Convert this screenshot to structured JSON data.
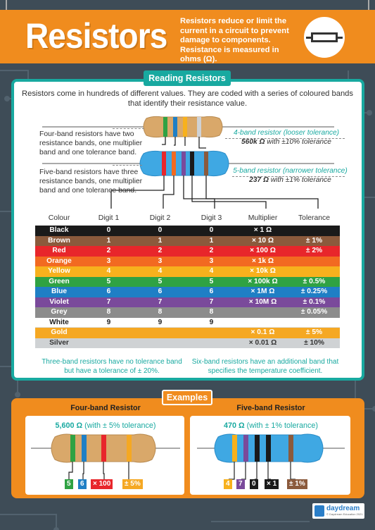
{
  "header": {
    "title": "Resistors",
    "description": "Resistors reduce or limit the current in a circuit to prevent damage to components. Resistance is measured in ohms (Ω)."
  },
  "reading": {
    "title": "Reading Resistors",
    "intro": "Resistors come in hundreds of different values. They are coded with a series of coloured bands that identify their resistance value.",
    "four_band_note": "Four-band resistors have two resistance bands, one multiplier band and one tolerance band.",
    "five_band_note": "Five-band resistors have three resistance bands, one multiplier band and one tolerance band.",
    "four_band_callout_title": "4-band resistor (looser tolerance)",
    "four_band_callout_value": "560k Ω",
    "four_band_callout_rest": " with ±10% tolerance",
    "five_band_callout_title": "5-band resistor (narrower tolerance)",
    "five_band_callout_value": "237 Ω",
    "five_band_callout_rest": " with ±1% tolerance",
    "three_band_foot": "Three-band resistors have no tolerance band but have a tolerance of ± 20%.",
    "six_band_foot": "Six-band resistors have an additional band that specifies the temperature coefficient."
  },
  "table": {
    "headers": [
      "Colour",
      "Digit 1",
      "Digit 2",
      "Digit 3",
      "Multiplier",
      "Tolerance"
    ],
    "rows": [
      {
        "colour": "Black",
        "d1": "0",
        "d2": "0",
        "d3": "0",
        "mult": "× 1 Ω",
        "tol": "",
        "bg": "#1a1a1a",
        "fg": "#ffffff",
        "multbg": "#1a1a1a",
        "tolbg": "#1a1a1a"
      },
      {
        "colour": "Brown",
        "d1": "1",
        "d2": "1",
        "d3": "1",
        "mult": "× 10 Ω",
        "tol": "± 1%",
        "bg": "#8b5a3c",
        "fg": "#ffffff",
        "multbg": "#8b5a3c",
        "tolbg": "#8b5a3c"
      },
      {
        "colour": "Red",
        "d1": "2",
        "d2": "2",
        "d3": "2",
        "mult": "× 100 Ω",
        "tol": "± 2%",
        "bg": "#e8262b",
        "fg": "#ffffff",
        "multbg": "#e8262b",
        "tolbg": "#e8262b"
      },
      {
        "colour": "Orange",
        "d1": "3",
        "d2": "3",
        "d3": "3",
        "mult": "× 1k Ω",
        "tol": "",
        "bg": "#f26a21",
        "fg": "#ffffff",
        "multbg": "#f26a21",
        "tolbg": "#f26a21"
      },
      {
        "colour": "Yellow",
        "d1": "4",
        "d2": "4",
        "d3": "4",
        "mult": "× 10k Ω",
        "tol": "",
        "bg": "#f7b11d",
        "fg": "#ffffff",
        "multbg": "#f7b11d",
        "tolbg": "#f7b11d"
      },
      {
        "colour": "Green",
        "d1": "5",
        "d2": "5",
        "d3": "5",
        "mult": "× 100k Ω",
        "tol": "± 0.5%",
        "bg": "#2fa243",
        "fg": "#ffffff",
        "multbg": "#2fa243",
        "tolbg": "#2fa243"
      },
      {
        "colour": "Blue",
        "d1": "6",
        "d2": "6",
        "d3": "6",
        "mult": "× 1M Ω",
        "tol": "± 0.25%",
        "bg": "#1f7fc5",
        "fg": "#ffffff",
        "multbg": "#1f7fc5",
        "tolbg": "#1f7fc5"
      },
      {
        "colour": "Violet",
        "d1": "7",
        "d2": "7",
        "d3": "7",
        "mult": "× 10M Ω",
        "tol": "± 0.1%",
        "bg": "#7a4a9b",
        "fg": "#ffffff",
        "multbg": "#7a4a9b",
        "tolbg": "#7a4a9b"
      },
      {
        "colour": "Grey",
        "d1": "8",
        "d2": "8",
        "d3": "8",
        "mult": "",
        "tol": "± 0.05%",
        "bg": "#8c8c8c",
        "fg": "#ffffff",
        "multbg": "#8c8c8c",
        "tolbg": "#8c8c8c"
      },
      {
        "colour": "White",
        "d1": "9",
        "d2": "9",
        "d3": "9",
        "mult": "",
        "tol": "",
        "bg": "#ffffff",
        "fg": "#222222",
        "multbg": "#ffffff",
        "tolbg": "#ffffff"
      },
      {
        "colour": "Gold",
        "d1": "",
        "d2": "",
        "d3": "",
        "mult": "× 0.1 Ω",
        "tol": "± 5%",
        "bg": "#f5a823",
        "fg": "#ffffff",
        "multbg": "#f5a823",
        "tolbg": "#f5a823"
      },
      {
        "colour": "Silver",
        "d1": "",
        "d2": "",
        "d3": "",
        "mult": "× 0.01 Ω",
        "tol": "± 10%",
        "bg": "#cfd2d4",
        "fg": "#333333",
        "multbg": "#cfd2d4",
        "tolbg": "#cfd2d4"
      }
    ]
  },
  "examples": {
    "title": "Examples",
    "four_band": {
      "title": "Four-band Resistor",
      "value": "5,600 Ω",
      "tolerance": " (with ± 5% tolerance)",
      "chips": [
        {
          "label": "5",
          "color": "#2fa243"
        },
        {
          "label": "6",
          "color": "#1f7fc5"
        },
        {
          "label": "× 100",
          "color": "#e8262b"
        },
        {
          "label": "± 5%",
          "color": "#f5a823"
        }
      ]
    },
    "five_band": {
      "title": "Five-band Resistor",
      "value": "470 Ω",
      "tolerance": " (with ± 1% tolerance)",
      "chips": [
        {
          "label": "4",
          "color": "#f7b11d"
        },
        {
          "label": "7",
          "color": "#7a4a9b"
        },
        {
          "label": "0",
          "color": "#1a1a1a"
        },
        {
          "label": "× 1",
          "color": "#1a1a1a"
        },
        {
          "label": "± 1%",
          "color": "#8b5a3c"
        }
      ]
    }
  },
  "logo": {
    "name": "daydream",
    "sub": "© Daydream Education 2021. All rights reserved."
  },
  "colors": {
    "accent": "#18a9a0",
    "header": "#f08c1e",
    "background": "#3e4c57"
  }
}
